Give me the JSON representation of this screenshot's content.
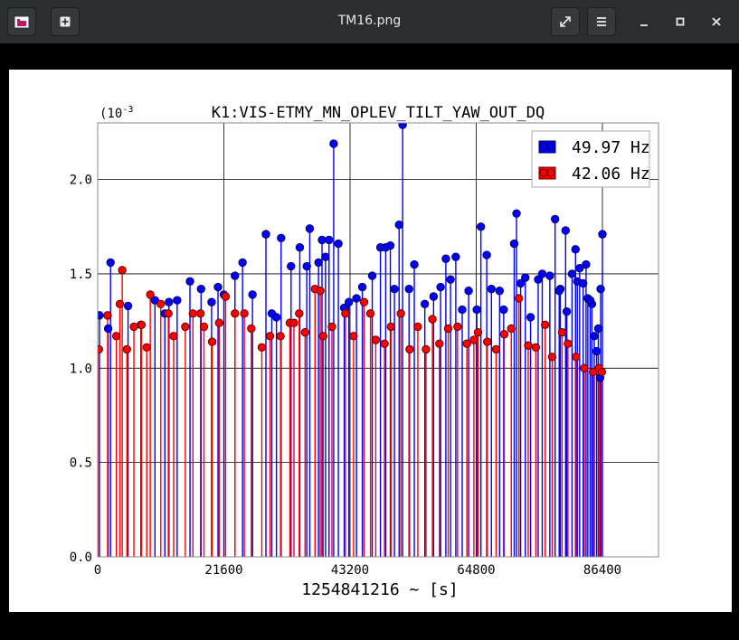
{
  "window": {
    "title": "TM16.png",
    "app_icon": "image-viewer-icon",
    "new_tab_icon": "new-tab-icon",
    "fullscreen_icon": "fullscreen-icon",
    "menu_icon": "hamburger-menu-icon",
    "minimize_icon": "minimize-icon",
    "maximize_icon": "maximize-icon",
    "close_icon": "close-icon"
  },
  "chart_data": {
    "type": "scatter",
    "title": "K1:VIS-ETMY_MN_OPLEV_TILT_YAW_OUT_DQ",
    "xlabel": "1254841216 ~ [s]",
    "ylabel": "",
    "y_scale_note": "(10",
    "y_scale_exp": "-3",
    "xlim": [
      0,
      86400
    ],
    "ylim": [
      0,
      2.3
    ],
    "xticks": [
      0,
      21600,
      43200,
      64800,
      86400
    ],
    "xtick_labels": [
      "0",
      "21600",
      "43200",
      "64800",
      "86400"
    ],
    "yticks": [
      0.0,
      0.5,
      1.0,
      1.5,
      2.0
    ],
    "ytick_labels": [
      "0.0",
      "0.5",
      "1.0",
      "1.5",
      "2.0"
    ],
    "grid": true,
    "legend_position": "top-right",
    "stem": true,
    "series": [
      {
        "name": "49.97 Hz",
        "color": "#0000ff",
        "points": [
          [
            300,
            1.28
          ],
          [
            1800,
            1.21
          ],
          [
            2200,
            1.56
          ],
          [
            5200,
            1.33
          ],
          [
            7400,
            1.23
          ],
          [
            9800,
            1.36
          ],
          [
            11500,
            1.29
          ],
          [
            12200,
            1.35
          ],
          [
            13600,
            1.36
          ],
          [
            15800,
            1.46
          ],
          [
            17700,
            1.42
          ],
          [
            19500,
            1.35
          ],
          [
            20600,
            1.43
          ],
          [
            21600,
            1.39
          ],
          [
            23500,
            1.49
          ],
          [
            24800,
            1.56
          ],
          [
            26500,
            1.39
          ],
          [
            28800,
            1.71
          ],
          [
            29800,
            1.29
          ],
          [
            30600,
            1.27
          ],
          [
            31400,
            1.69
          ],
          [
            33100,
            1.54
          ],
          [
            34600,
            1.64
          ],
          [
            35800,
            1.54
          ],
          [
            36300,
            1.74
          ],
          [
            37800,
            1.56
          ],
          [
            38400,
            1.68
          ],
          [
            39000,
            1.59
          ],
          [
            39600,
            1.68
          ],
          [
            40400,
            2.19
          ],
          [
            41200,
            1.66
          ],
          [
            42200,
            1.32
          ],
          [
            43000,
            1.35
          ],
          [
            44300,
            1.37
          ],
          [
            45300,
            1.43
          ],
          [
            47000,
            1.49
          ],
          [
            48400,
            1.64
          ],
          [
            49300,
            1.64
          ],
          [
            50100,
            1.65
          ],
          [
            50800,
            1.42
          ],
          [
            51600,
            1.76
          ],
          [
            52200,
            2.29
          ],
          [
            53300,
            1.42
          ],
          [
            54200,
            1.55
          ],
          [
            56000,
            1.34
          ],
          [
            57500,
            1.38
          ],
          [
            58700,
            1.43
          ],
          [
            59600,
            1.58
          ],
          [
            60400,
            1.47
          ],
          [
            61300,
            1.59
          ],
          [
            62400,
            1.31
          ],
          [
            63500,
            1.41
          ],
          [
            64900,
            1.31
          ],
          [
            65600,
            1.75
          ],
          [
            66600,
            1.6
          ],
          [
            67400,
            1.42
          ],
          [
            68800,
            1.41
          ],
          [
            69500,
            1.31
          ],
          [
            71300,
            1.66
          ],
          [
            72400,
            1.45
          ],
          [
            73200,
            1.48
          ],
          [
            74100,
            1.27
          ],
          [
            75400,
            1.47
          ],
          [
            76100,
            1.5
          ],
          [
            77400,
            1.49
          ],
          [
            78300,
            1.79
          ],
          [
            79200,
            1.42
          ],
          [
            80300,
            1.3
          ],
          [
            81200,
            1.5
          ],
          [
            82100,
            1.46
          ],
          [
            83600,
            1.55
          ],
          [
            84600,
            1.34
          ],
          [
            85000,
            1.17
          ],
          [
            85700,
            1.21
          ],
          [
            86100,
            1.42
          ],
          [
            86400,
            1.71
          ],
          [
            71700,
            1.82
          ],
          [
            79000,
            1.41
          ],
          [
            80100,
            1.73
          ],
          [
            81800,
            1.63
          ],
          [
            82500,
            1.53
          ],
          [
            83100,
            1.45
          ],
          [
            83900,
            1.37
          ],
          [
            84300,
            1.36
          ],
          [
            85400,
            1.09
          ],
          [
            86000,
            0.95
          ]
        ]
      },
      {
        "name": "42.06 Hz",
        "color": "#ff0000",
        "points": [
          [
            200,
            1.1
          ],
          [
            1700,
            1.28
          ],
          [
            3200,
            1.17
          ],
          [
            3800,
            1.34
          ],
          [
            4200,
            1.52
          ],
          [
            5000,
            1.1
          ],
          [
            6200,
            1.22
          ],
          [
            7500,
            1.23
          ],
          [
            8400,
            1.11
          ],
          [
            9000,
            1.39
          ],
          [
            10800,
            1.34
          ],
          [
            12100,
            1.29
          ],
          [
            13000,
            1.17
          ],
          [
            15000,
            1.22
          ],
          [
            16300,
            1.29
          ],
          [
            17600,
            1.29
          ],
          [
            18200,
            1.22
          ],
          [
            19600,
            1.14
          ],
          [
            20800,
            1.24
          ],
          [
            21900,
            1.38
          ],
          [
            23500,
            1.29
          ],
          [
            25100,
            1.29
          ],
          [
            26300,
            1.21
          ],
          [
            28100,
            1.11
          ],
          [
            29500,
            1.17
          ],
          [
            31300,
            1.17
          ],
          [
            32900,
            1.24
          ],
          [
            33600,
            1.24
          ],
          [
            34500,
            1.29
          ],
          [
            35500,
            1.19
          ],
          [
            37200,
            1.42
          ],
          [
            38100,
            1.41
          ],
          [
            38600,
            1.17
          ],
          [
            40100,
            1.22
          ],
          [
            42400,
            1.29
          ],
          [
            43800,
            1.17
          ],
          [
            45600,
            1.35
          ],
          [
            46700,
            1.29
          ],
          [
            47600,
            1.15
          ],
          [
            49100,
            1.13
          ],
          [
            50200,
            1.22
          ],
          [
            51900,
            1.29
          ],
          [
            53400,
            1.1
          ],
          [
            54800,
            1.22
          ],
          [
            56200,
            1.1
          ],
          [
            57300,
            1.26
          ],
          [
            58500,
            1.13
          ],
          [
            60000,
            1.21
          ],
          [
            61600,
            1.22
          ],
          [
            63200,
            1.13
          ],
          [
            64400,
            1.15
          ],
          [
            65100,
            1.19
          ],
          [
            66700,
            1.14
          ],
          [
            68200,
            1.1
          ],
          [
            69600,
            1.18
          ],
          [
            70800,
            1.21
          ],
          [
            72100,
            1.37
          ],
          [
            73700,
            1.12
          ],
          [
            75000,
            1.11
          ],
          [
            76600,
            1.23
          ],
          [
            77800,
            1.06
          ],
          [
            79500,
            1.19
          ],
          [
            80500,
            1.13
          ],
          [
            81900,
            1.06
          ],
          [
            83300,
            1.0
          ],
          [
            84800,
            0.98
          ],
          [
            85800,
            1.0
          ],
          [
            86300,
            0.98
          ]
        ]
      }
    ]
  }
}
